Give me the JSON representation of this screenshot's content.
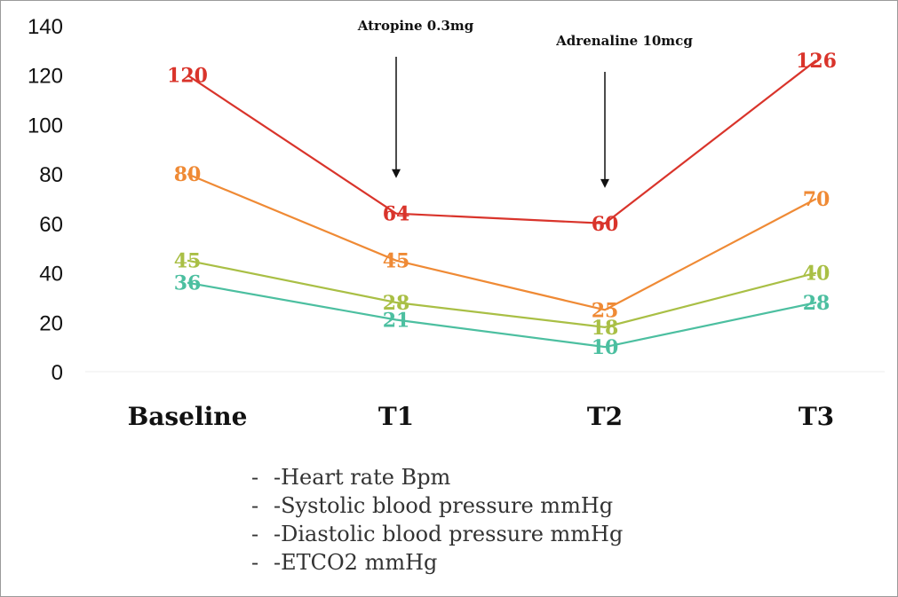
{
  "chart_data": {
    "type": "line",
    "categories": [
      "Baseline",
      "T1",
      "T2",
      "T3"
    ],
    "ylim": [
      0,
      140
    ],
    "yticks": [
      0,
      20,
      40,
      60,
      80,
      100,
      120,
      140
    ],
    "grid": false,
    "legend_position": "bottom-center",
    "series": [
      {
        "name": "-Heart rate Bpm",
        "color": "#d9342b",
        "values": [
          120,
          64,
          60,
          126
        ]
      },
      {
        "name": "-Systolic blood pressure mmHg",
        "color": "#ef8a35",
        "values": [
          80,
          45,
          25,
          70
        ]
      },
      {
        "name": "-Diastolic blood pressure mmHg",
        "color": "#a9bf45",
        "values": [
          45,
          28,
          18,
          40
        ]
      },
      {
        "name": "-ETCO2 mmHg",
        "color": "#4cbfa0",
        "values": [
          36,
          21,
          10,
          28
        ]
      }
    ],
    "annotations": [
      {
        "text": "Atropine 0.3mg",
        "category": "T1",
        "value": 64
      },
      {
        "text": "Adrenaline 10mcg",
        "category": "T2",
        "value": 60
      }
    ]
  },
  "legend": {
    "marker": "-"
  }
}
